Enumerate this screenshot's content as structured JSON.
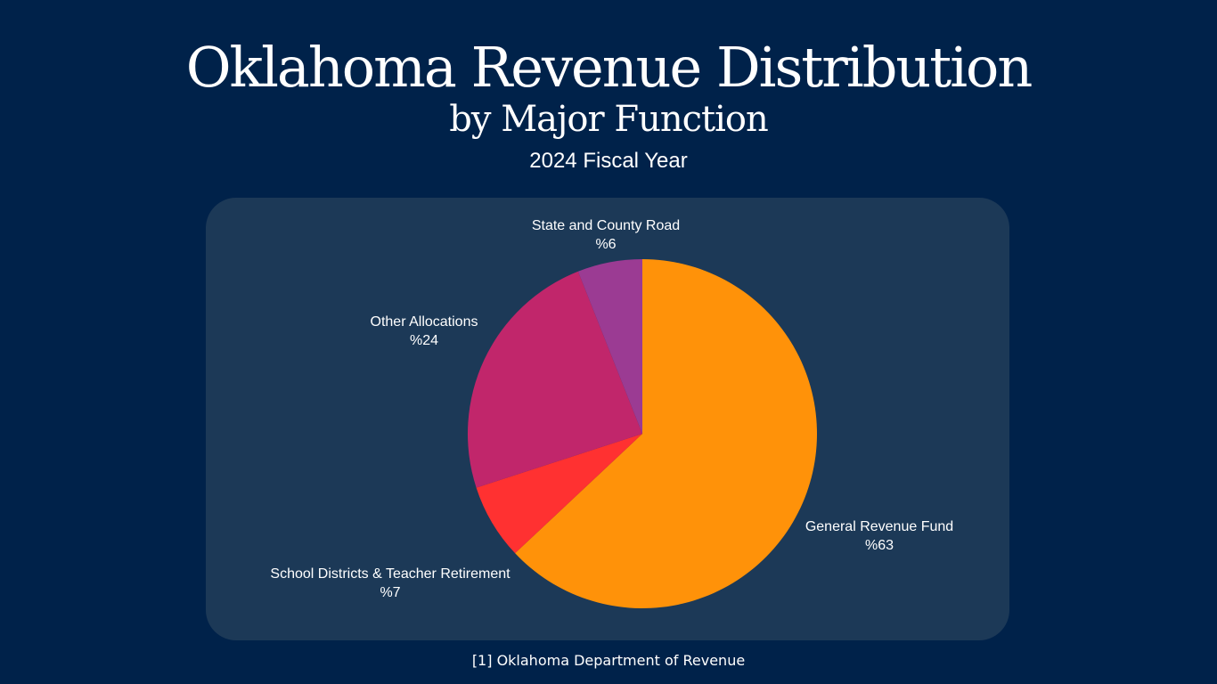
{
  "header": {
    "title": "Oklahoma Revenue Distribution",
    "subtitle": "by Major Function",
    "fiscal_year": "2024 Fiscal Year"
  },
  "chart_data": {
    "type": "pie",
    "title": "Oklahoma Revenue Distribution by Major Function",
    "subtitle": "2024 Fiscal Year",
    "start_angle_deg": 0,
    "direction": "clockwise",
    "slices": [
      {
        "name": "General Revenue Fund",
        "value": 63,
        "value_label": "%63",
        "color": "#ff9209"
      },
      {
        "name": "School Districts & Teacher Retirement",
        "value": 7,
        "value_label": "%7",
        "color": "#ff3131"
      },
      {
        "name": "Other Allocations",
        "value": 24,
        "value_label": "%24",
        "color": "#c1266b"
      },
      {
        "name": "State and County Road",
        "value": 6,
        "value_label": "%6",
        "color": "#9b3b93"
      }
    ]
  },
  "footer": {
    "source": "[1] Oklahoma Department of Revenue"
  }
}
